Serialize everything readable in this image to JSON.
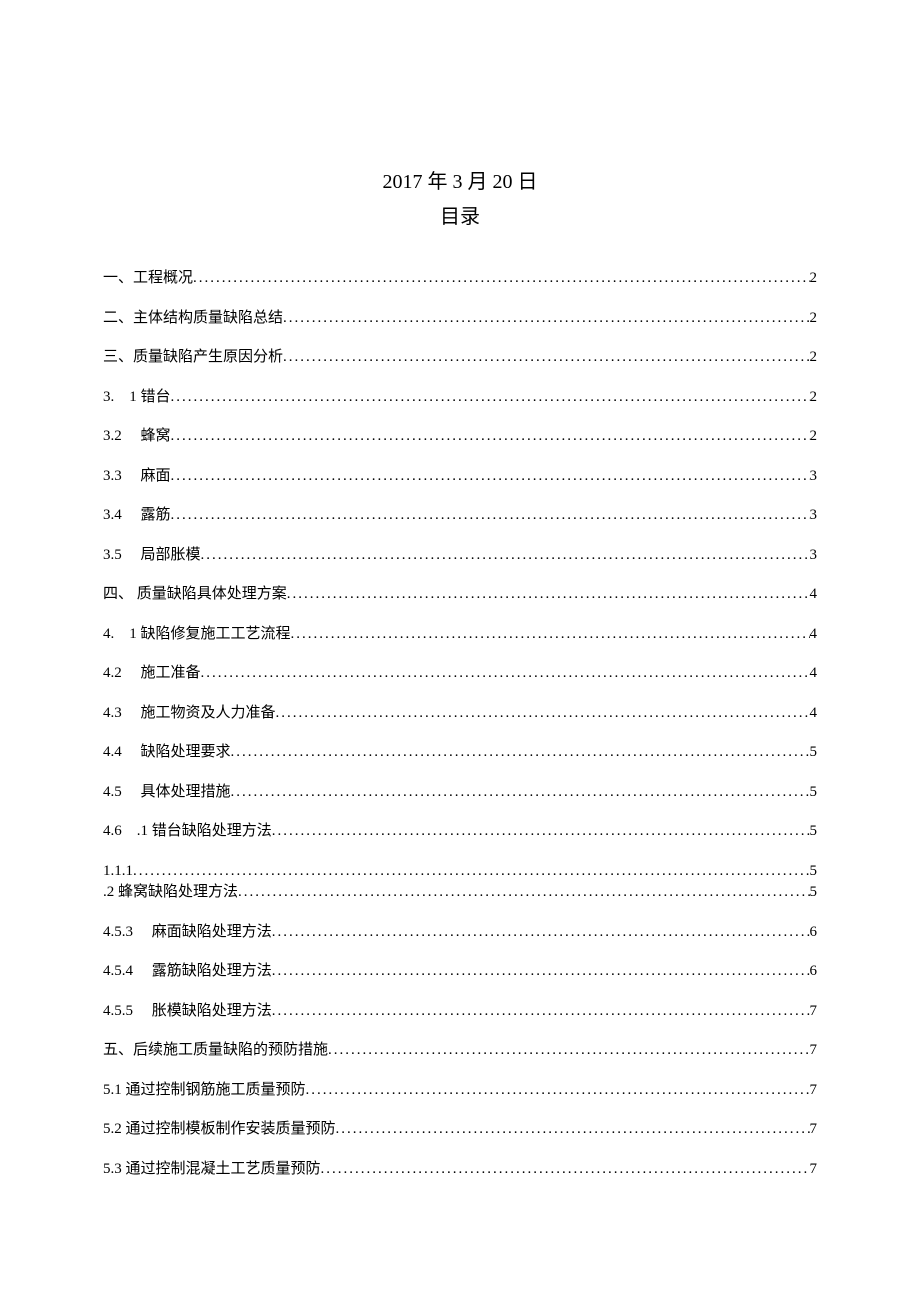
{
  "header": {
    "date": "2017 年 3 月 20 日",
    "toc_title": "目录"
  },
  "toc": {
    "entries": [
      {
        "label": "一、工程概况",
        "page": "2",
        "spacing": "group"
      },
      {
        "label": "二、主体结构质量缺陷总结",
        "page": "2",
        "spacing": "group"
      },
      {
        "label": "三、质量缺陷产生原因分析",
        "page": "2",
        "spacing": "group"
      },
      {
        "label": "3.　1 错台 ",
        "page": "2",
        "spacing": "group"
      },
      {
        "label": "3.2　 蜂窝",
        "page": "2",
        "spacing": "group"
      },
      {
        "label": "3.3　 麻面",
        "page": "3",
        "spacing": "group"
      },
      {
        "label": "3.4　 露筋",
        "page": "3",
        "spacing": "group"
      },
      {
        "label": "3.5　 局部胀模",
        "page": "3",
        "spacing": "group"
      },
      {
        "label": "四、 质量缺陷具体处理方案",
        "page": "4",
        "spacing": "group"
      },
      {
        "label": "4.　1 缺陷修复施工工艺流程 ",
        "page": "4",
        "spacing": "group"
      },
      {
        "label": "4.2　 施工准备",
        "page": "4",
        "spacing": "group"
      },
      {
        "label": "4.3　 施工物资及人力准备",
        "page": "4",
        "spacing": "group"
      },
      {
        "label": "4.4　 缺陷处理要求",
        "page": "5",
        "spacing": "group"
      },
      {
        "label": "4.5　 具体处理措施",
        "page": "5",
        "spacing": "group"
      },
      {
        "label": "4.6　.1 错台缺陷处理方法",
        "page": "5",
        "spacing": "group"
      },
      {
        "label": "1.1.1",
        "page": "5",
        "spacing": "tight"
      },
      {
        "label": ".2 蜂窝缺陷处理方法",
        "page": "5",
        "spacing": "group"
      },
      {
        "label": "4.5.3　 麻面缺陷处理方法",
        "page": "6",
        "spacing": "group"
      },
      {
        "label": "4.5.4　 露筋缺陷处理方法",
        "page": "6",
        "spacing": "group"
      },
      {
        "label": "4.5.5　 胀模缺陷处理方法",
        "page": "7",
        "spacing": "group"
      },
      {
        "label": "五、后续施工质量缺陷的预防措施",
        "page": "7",
        "spacing": "group"
      },
      {
        "label": "5.1 通过控制钢筋施工质量预防",
        "page": "7",
        "spacing": "group"
      },
      {
        "label": "5.2 通过控制模板制作安装质量预防",
        "page": "7",
        "spacing": "group"
      },
      {
        "label": "5.3 通过控制混凝土工艺质量预防",
        "page": "7",
        "spacing": "group"
      }
    ]
  },
  "style": {
    "dot_fill": "........................................................................................................................................................",
    "background_color": "#ffffff",
    "text_color": "#000000",
    "header_fontsize": 20,
    "entry_fontsize": 15,
    "group_margin_bottom": 20
  }
}
